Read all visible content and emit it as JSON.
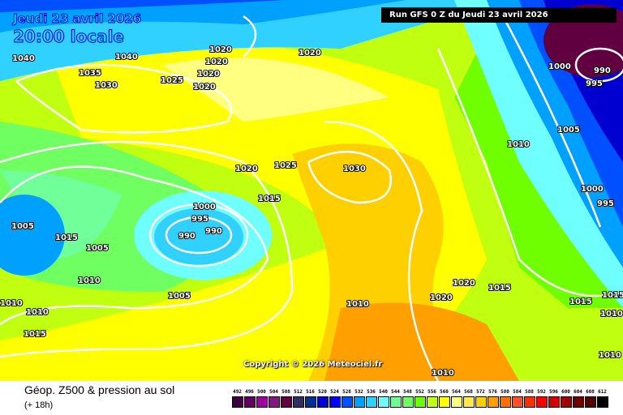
{
  "header": {
    "date": "Jeudi 23 avril 2026",
    "time": "20:00 locale",
    "run": "Run GFS 0 Z du Jeudi 23 avril 2026"
  },
  "copyright": "Copyright © 2026 Meteociel.fr",
  "footer": {
    "title": "Géop. Z500 & pression au sol",
    "subtitle": "(+ 18h)"
  },
  "legend": [
    {
      "v": "492",
      "c": "#400040"
    },
    {
      "v": "496",
      "c": "#600060"
    },
    {
      "v": "500",
      "c": "#a000a0"
    },
    {
      "v": "504",
      "c": "#801880"
    },
    {
      "v": "508",
      "c": "#600040"
    },
    {
      "v": "512",
      "c": "#303060"
    },
    {
      "v": "516",
      "c": "#003090"
    },
    {
      "v": "520",
      "c": "#0000d0"
    },
    {
      "v": "524",
      "c": "#0000ff"
    },
    {
      "v": "528",
      "c": "#0050ff"
    },
    {
      "v": "532",
      "c": "#00a0ff"
    },
    {
      "v": "536",
      "c": "#30d0ff"
    },
    {
      "v": "540",
      "c": "#70ffff"
    },
    {
      "v": "544",
      "c": "#70ff98"
    },
    {
      "v": "548",
      "c": "#70ff60"
    },
    {
      "v": "552",
      "c": "#70ff00"
    },
    {
      "v": "556",
      "c": "#c0ff10"
    },
    {
      "v": "560",
      "c": "#ffff00"
    },
    {
      "v": "564",
      "c": "#ffff80"
    },
    {
      "v": "568",
      "c": "#ffe850"
    },
    {
      "v": "572",
      "c": "#ffd000"
    },
    {
      "v": "576",
      "c": "#ffa000"
    },
    {
      "v": "580",
      "c": "#ff7000"
    },
    {
      "v": "584",
      "c": "#ff5030"
    },
    {
      "v": "588",
      "c": "#ff3000"
    },
    {
      "v": "592",
      "c": "#ff0000"
    },
    {
      "v": "596",
      "c": "#d00000"
    },
    {
      "v": "600",
      "c": "#a00000"
    },
    {
      "v": "604",
      "c": "#700000"
    },
    {
      "v": "608",
      "c": "#500000"
    },
    {
      "v": "612",
      "c": "#000000"
    }
  ],
  "isobar_labels": [
    "1040",
    "1040",
    "1035",
    "1030",
    "1025",
    "1020",
    "1020",
    "1020",
    "1020",
    "1020",
    "1020",
    "1025",
    "1030",
    "1015",
    "1000",
    "995",
    "990",
    "990",
    "1005",
    "1015",
    "1005",
    "1010",
    "1010",
    "1010",
    "1005",
    "1015",
    "1010",
    "1020",
    "1020",
    "1015",
    "1015",
    "1015",
    "1010",
    "1010",
    "1010",
    "1000",
    "990",
    "995",
    "1005",
    "1010",
    "1000",
    "995"
  ]
}
